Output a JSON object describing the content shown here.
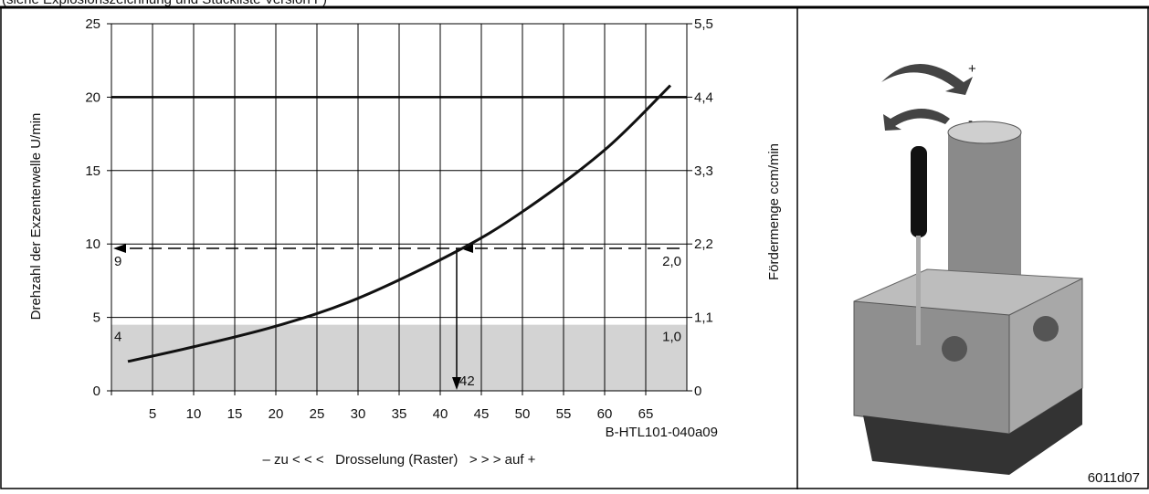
{
  "header": {
    "text": "(siehe Explosionszeichnung und Stückliste Version F)"
  },
  "chart_data": {
    "type": "line",
    "y_label": "Drehzahl der Exzenterwelle U/min",
    "y2_label": "Fördermenge ccm/min",
    "x_label": "– zu < < <   Drosselung (Raster)   > > > auf +",
    "code": "B-HTL101-040a09",
    "xlim": [
      0,
      70
    ],
    "xticks": [
      5,
      10,
      15,
      20,
      25,
      30,
      35,
      40,
      45,
      50,
      55,
      60,
      65
    ],
    "ylim": [
      0,
      25
    ],
    "yticks": [
      0,
      5,
      10,
      15,
      20,
      25
    ],
    "y2lim": [
      0,
      5.5
    ],
    "y2ticks": [
      0,
      {
        "value": 1.1,
        "label": "1,1"
      },
      {
        "value": 2.2,
        "label": "2,2"
      },
      {
        "value": 3.3,
        "label": "3,3"
      },
      {
        "value": 4.4,
        "label": "4,4"
      },
      {
        "value": 5.5,
        "label": "5,5"
      }
    ],
    "grid": true,
    "bold_y_gridline": 20,
    "series": [
      {
        "color": "#111111",
        "x": [
          2,
          10,
          20,
          30,
          42,
          50,
          60,
          68
        ],
        "values": [
          2.0,
          3.0,
          4.4,
          6.3,
          9.5,
          12.2,
          16.4,
          20.8
        ]
      }
    ],
    "band": {
      "value": 4.5,
      "color": "#d3d3d3",
      "left_label": "4",
      "right_label": "1,0"
    },
    "horizontal_marker": {
      "value": 9.7,
      "left_label": "9",
      "right_label": "2,0"
    },
    "vertical_marker": {
      "value": 42,
      "label": "42"
    }
  },
  "photo": {
    "caption": "6011d07"
  }
}
